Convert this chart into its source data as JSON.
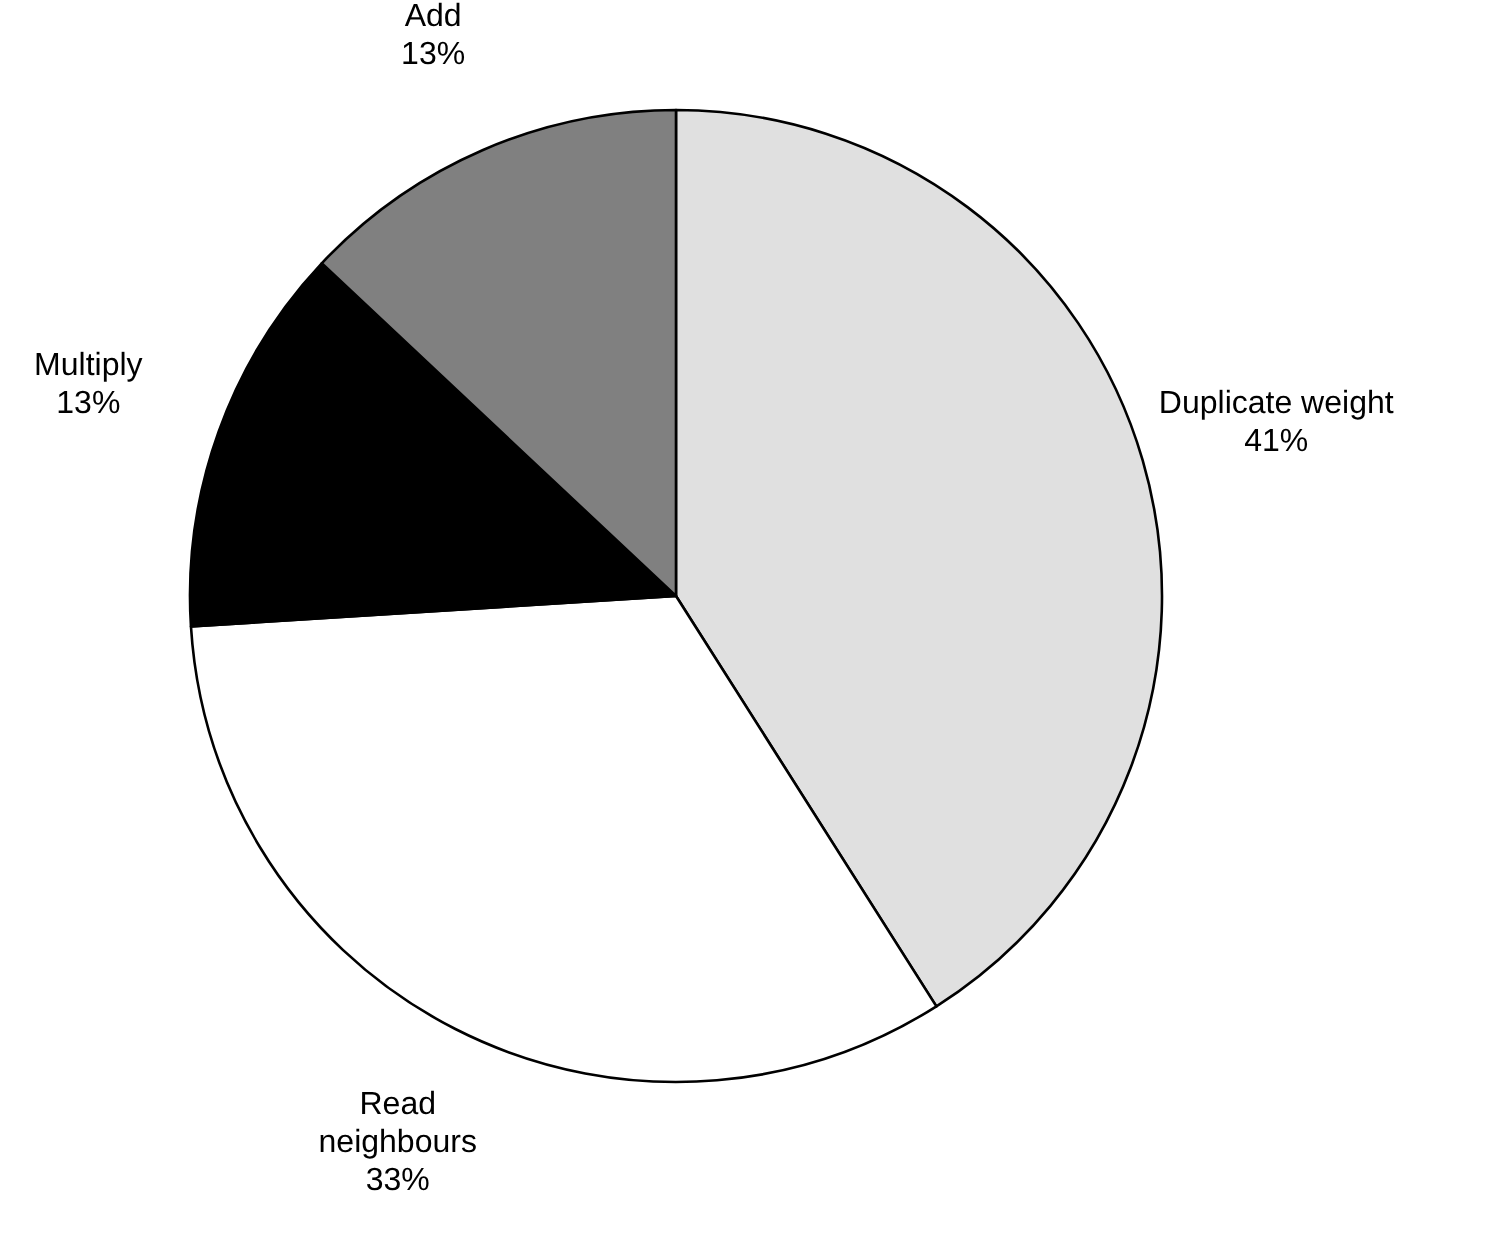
{
  "chart_data": {
    "type": "pie",
    "categories": [
      "Duplicate weight",
      "Read neighbours",
      "Multiply",
      "Add"
    ],
    "values": [
      41,
      33,
      13,
      13
    ],
    "value_labels": [
      "41%",
      "33%",
      "13%",
      "13%"
    ],
    "colors": [
      "#e0e0e0",
      "#ffffff",
      "#000000",
      "#808080"
    ]
  }
}
